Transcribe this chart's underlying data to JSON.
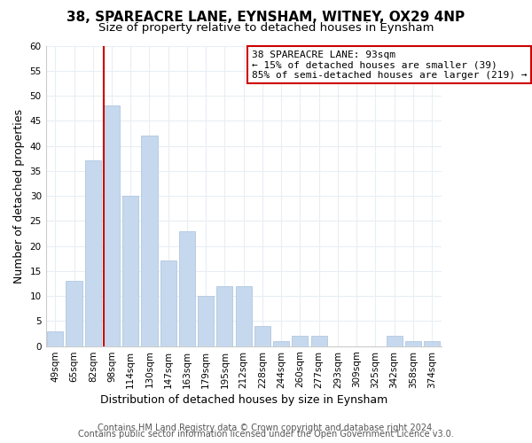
{
  "title": "38, SPAREACRE LANE, EYNSHAM, WITNEY, OX29 4NP",
  "subtitle": "Size of property relative to detached houses in Eynsham",
  "xlabel": "Distribution of detached houses by size in Eynsham",
  "ylabel": "Number of detached properties",
  "bar_labels": [
    "49sqm",
    "65sqm",
    "82sqm",
    "98sqm",
    "114sqm",
    "130sqm",
    "147sqm",
    "163sqm",
    "179sqm",
    "195sqm",
    "212sqm",
    "228sqm",
    "244sqm",
    "260sqm",
    "277sqm",
    "293sqm",
    "309sqm",
    "325sqm",
    "342sqm",
    "358sqm",
    "374sqm"
  ],
  "bar_values": [
    3,
    13,
    37,
    48,
    30,
    42,
    17,
    23,
    10,
    12,
    12,
    4,
    1,
    2,
    2,
    0,
    0,
    0,
    2,
    1,
    1
  ],
  "bar_color": "#c5d8ed",
  "bar_edge_color": "#b0c8e0",
  "ylim": [
    0,
    60
  ],
  "yticks": [
    0,
    5,
    10,
    15,
    20,
    25,
    30,
    35,
    40,
    45,
    50,
    55,
    60
  ],
  "vline_color": "#cc0000",
  "annotation_title": "38 SPAREACRE LANE: 93sqm",
  "annotation_line1": "← 15% of detached houses are smaller (39)",
  "annotation_line2": "85% of semi-detached houses are larger (219) →",
  "footer1": "Contains HM Land Registry data © Crown copyright and database right 2024.",
  "footer2": "Contains public sector information licensed under the Open Government Licence v3.0.",
  "background_color": "#ffffff",
  "grid_color": "#e8eef4",
  "title_fontsize": 11,
  "subtitle_fontsize": 9.5,
  "axis_label_fontsize": 9,
  "tick_fontsize": 7.5,
  "footer_fontsize": 7
}
